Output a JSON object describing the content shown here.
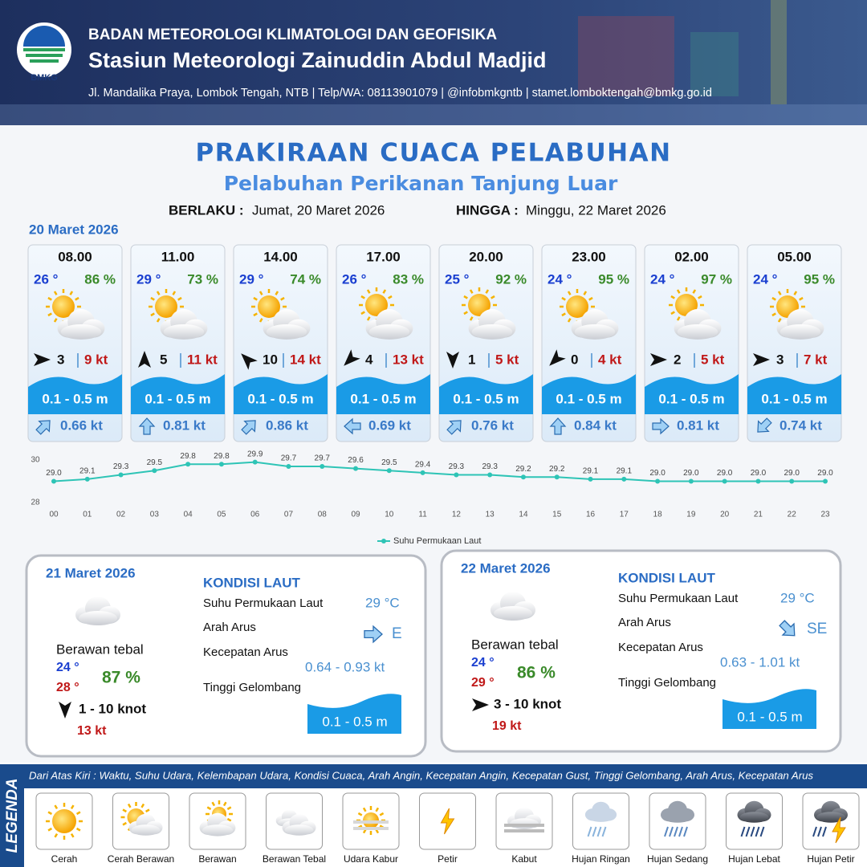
{
  "header": {
    "logo": "BMKG",
    "agency": "BADAN METEOROLOGI KLIMATOLOGI DAN GEOFISIKA",
    "station": "Stasiun Meteorologi Zainuddin Abdul Madjid",
    "address": "Jl. Mandalika Praya, Lombok Tengah, NTB | Telp/WA: 08113901079 | @infobmkgntb | stamet.lomboktengah@bmkg.go.id"
  },
  "title": "PRAKIRAAN CUACA PELABUHAN",
  "subtitle": "Pelabuhan Perikanan Tanjung Luar",
  "validity": {
    "from_label": "BERLAKU :",
    "from": "Jumat, 20 Maret 2026",
    "to_label": "HINGGA :",
    "to": "Minggu, 22 Maret 2026"
  },
  "today": {
    "date": "20 Maret 2026",
    "cards": [
      {
        "time": "08.00",
        "temp": "26 °",
        "humidity": "86 %",
        "wind_speed": "3",
        "gust": "9 kt",
        "wave": "0.1 - 0.5 m",
        "current": "0.66 kt"
      },
      {
        "time": "11.00",
        "temp": "29 °",
        "humidity": "73 %",
        "wind_speed": "5",
        "gust": "11 kt",
        "wave": "0.1 - 0.5 m",
        "current": "0.81 kt"
      },
      {
        "time": "14.00",
        "temp": "29 °",
        "humidity": "74 %",
        "wind_speed": "10",
        "gust": "14 kt",
        "wave": "0.1 - 0.5 m",
        "current": "0.86 kt"
      },
      {
        "time": "17.00",
        "temp": "26 °",
        "humidity": "83 %",
        "wind_speed": "4",
        "gust": "13 kt",
        "wave": "0.1 - 0.5 m",
        "current": "0.69 kt"
      },
      {
        "time": "20.00",
        "temp": "25 °",
        "humidity": "92 %",
        "wind_speed": "1",
        "gust": "5 kt",
        "wave": "0.1 - 0.5 m",
        "current": "0.76 kt"
      },
      {
        "time": "23.00",
        "temp": "24 °",
        "humidity": "95 %",
        "wind_speed": "0",
        "gust": "4 kt",
        "wave": "0.1 - 0.5 m",
        "current": "0.84 kt"
      },
      {
        "time": "02.00",
        "temp": "24 °",
        "humidity": "97 %",
        "wind_speed": "2",
        "gust": "5 kt",
        "wave": "0.1 - 0.5 m",
        "current": "0.81 kt"
      },
      {
        "time": "05.00",
        "temp": "24 °",
        "humidity": "95 %",
        "wind_speed": "3",
        "gust": "7 kt",
        "wave": "0.1 - 0.5 m",
        "current": "0.74 kt"
      }
    ]
  },
  "chart_data": {
    "type": "line",
    "categories": [
      "00",
      "01",
      "02",
      "03",
      "04",
      "05",
      "06",
      "07",
      "08",
      "09",
      "10",
      "11",
      "12",
      "13",
      "14",
      "15",
      "16",
      "17",
      "18",
      "19",
      "20",
      "21",
      "22",
      "23"
    ],
    "series": [
      {
        "name": "Suhu Permukaan Laut",
        "color": "#2ec4b6",
        "values": [
          29.0,
          29.1,
          29.3,
          29.5,
          29.8,
          29.8,
          29.9,
          29.7,
          29.7,
          29.6,
          29.5,
          29.4,
          29.3,
          29.3,
          29.2,
          29.2,
          29.1,
          29.1,
          29.0,
          29.0,
          29.0,
          29.0,
          29.0,
          29.0
        ],
        "value_labels": [
          "29.0",
          "29.1",
          "29.3",
          "29.5",
          "29.8",
          "29.8",
          "29.9",
          "29.7",
          "29.7",
          "29.6",
          "29.5",
          "29.4",
          "29.3",
          "29.3",
          "29.2",
          "29.2",
          "29.1",
          "29.1",
          "29.0",
          "29.0",
          "29.0",
          "29.0",
          "29.0",
          "29.0"
        ]
      }
    ],
    "ylim": [
      28,
      30
    ],
    "yticks": [
      28,
      30
    ]
  },
  "days": [
    {
      "date": "21 Maret 2026",
      "weather": "Berawan tebal",
      "temp_min": "24 °",
      "temp_max": "28 °",
      "humidity": "87 %",
      "wind": "1 - 10 knot",
      "gust": "13 kt",
      "sea_heading": "KONDISI LAUT",
      "sst_label": "Suhu Permukaan Laut",
      "sst": "29 °C",
      "current_dir_label": "Arah Arus",
      "current_dir": "E",
      "current_speed_label": "Kecepatan Arus",
      "current_speed": "0.64 - 0.93 kt",
      "wave_label": "Tinggi Gelombang",
      "wave": "0.1 - 0.5 m"
    },
    {
      "date": "22 Maret 2026",
      "weather": "Berawan tebal",
      "temp_min": "24 °",
      "temp_max": "29 °",
      "humidity": "86 %",
      "wind": "3 - 10 knot",
      "gust": "19 kt",
      "sea_heading": "KONDISI LAUT",
      "sst_label": "Suhu Permukaan Laut",
      "sst": "29 °C",
      "current_dir_label": "Arah Arus",
      "current_dir": "SE",
      "current_speed_label": "Kecepatan Arus",
      "current_speed": "0.63 - 1.01 kt",
      "wave_label": "Tinggi Gelombang",
      "wave": "0.1 - 0.5 m"
    }
  ],
  "legend": {
    "title": "LEGENDA",
    "description": "Dari Atas Kiri : Waktu, Suhu Udara, Kelembapan Udara, Kondisi Cuaca, Arah Angin, Kecepatan Angin, Kecepatan Gust, Tinggi Gelombang, Arah Arus, Kecepatan Arus",
    "items": [
      "Cerah",
      "Cerah Berawan",
      "Berawan",
      "Berawan Tebal",
      "Udara Kabur",
      "Petir",
      "Kabut",
      "Hujan Ringan",
      "Hujan Sedang",
      "Hujan Lebat",
      "Hujan Petir"
    ]
  }
}
